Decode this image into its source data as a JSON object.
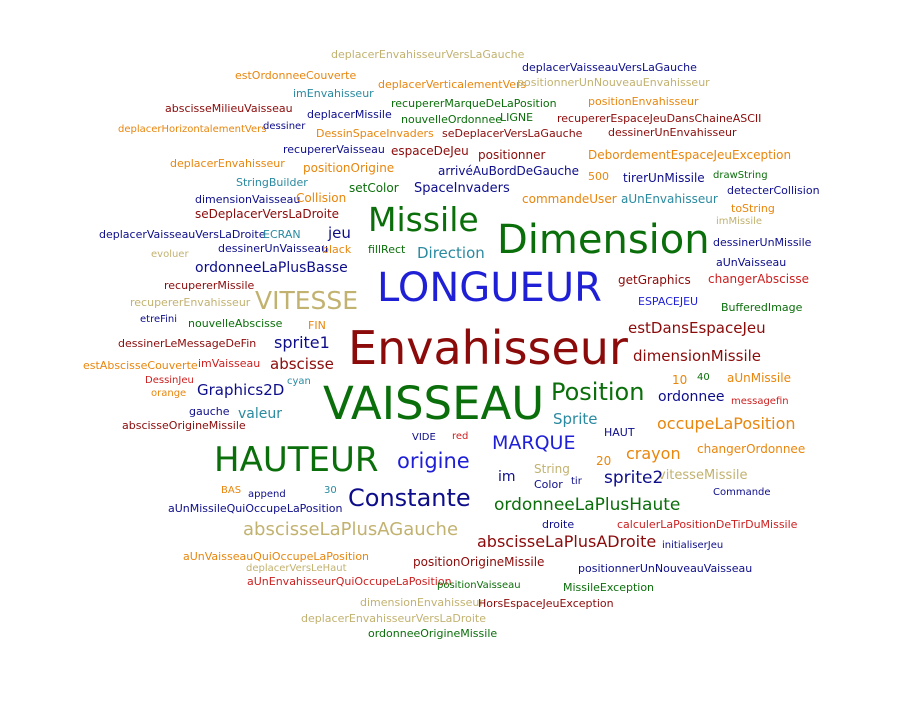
{
  "palette": {
    "navy": "#0d0d8a",
    "blue": "#1f1fd6",
    "darkred": "#8b0a0a",
    "red": "#cc1f1f",
    "green": "#0a6e0a",
    "orange": "#e8860d",
    "khaki": "#c2b270",
    "teal": "#2a8aa0"
  },
  "words": [
    "deplacerEnvahisseurVersLaGauche",
    "deplacerVaisseauVersLaGauche",
    "estOrdonneeCouverte",
    "deplacerVerticalementVers",
    "positionnerUnNouveauEnvahisseur",
    "imEnvahisseur",
    "abscisseMilieuVaisseau",
    "recupererMarqueDeLaPosition",
    "positionEnvahisseur",
    "deplacerMissile",
    "nouvelleOrdonnee",
    "LIGNE",
    "recupererEspaceJeuDansChaineASCII",
    "deplacerHorizontalementVers",
    "dessiner",
    "DessinSpaceInvaders",
    "seDeplacerVersLaGauche",
    "dessinerUnEnvahisseur",
    "recupererVaisseau",
    "espaceDeJeu",
    "positionner",
    "DebordementEspaceJeuException",
    "deplacerEnvahisseur",
    "positionOrigine",
    "arrivéAuBordDeGauche",
    "500",
    "tirerUnMissile",
    "drawString",
    "StringBuilder",
    "setColor",
    "SpaceInvaders",
    "detecterCollision",
    "dimensionVaisseau",
    "Collision",
    "commandeUser",
    "aUnEnvahisseur",
    "toString",
    "seDeplacerVersLaDroite",
    "Missile",
    "Dimension",
    "imMissile",
    "deplacerVaisseauVersLaDroite",
    "ECRAN",
    "jeu",
    "dessinerUnMissile",
    "dessinerUnVaisseau",
    "black",
    "fillRect",
    "Direction",
    "evoluer",
    "ordonneeLaPlusBasse",
    "aUnVaisseau",
    "recupererMissile",
    "LONGUEUR",
    "getGraphics",
    "changerAbscisse",
    "VITESSE",
    "recupererEnvahisseur",
    "ESPACEJEU",
    "BufferedImage",
    "etreFini",
    "nouvelleAbscisse",
    "FIN",
    "estDansEspaceJeu",
    "dessinerLeMessageDeFin",
    "sprite1",
    "Envahisseur",
    "dimensionMissile",
    "estAbscisseCouverte",
    "imVaisseau",
    "abscisse",
    "DessinJeu",
    "cyan",
    "10",
    "40",
    "aUnMissile",
    "orange",
    "Graphics2D",
    "Position",
    "ordonnee",
    "VAISSEAU",
    "messagefin",
    "gauche",
    "valeur",
    "occupeLaPosition",
    "abscisseOrigineMissile",
    "Sprite",
    "HAUT",
    "VIDE",
    "red",
    "MARQUE",
    "changerOrdonnee",
    "HAUTEUR",
    "origine",
    "crayon",
    "20",
    "String",
    "vitesseMissile",
    "im",
    "tir",
    "sprite2",
    "Color",
    "BAS",
    "append",
    "30",
    "Constante",
    "Commande",
    "aUnMissileQuiOccupeLaPosition",
    "ordonneeLaPlusHaute",
    "abscisseLaPlusAGauche",
    "droite",
    "calculerLaPositionDeTirDuMissile",
    "abscisseLaPlusADroite",
    "initialiserJeu",
    "aUnVaisseauQuiOccupeLaPosition",
    "positionOrigineMissile",
    "deplacerVersLeHaut",
    "positionnerUnNouveauVaisseau",
    "aUnEnvahisseurQuiOccupeLaPosition",
    "positionVaisseau",
    "MissileException",
    "dimensionEnvahisseur",
    "HorsEspaceJeuException",
    "deplacerEnvahisseurVersLaDroite",
    "ordonneeOrigineMissile"
  ]
}
